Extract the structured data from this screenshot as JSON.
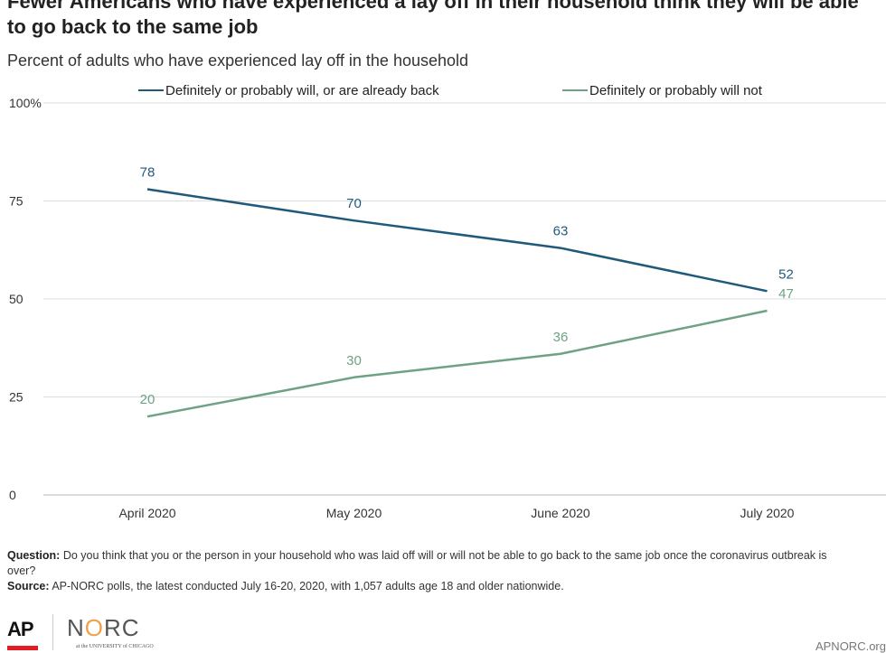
{
  "header": {
    "title": "Fewer Americans who have experienced a lay off in their household think they will be able to go back to the same job",
    "subtitle": "Percent of adults who have experienced lay off in the household"
  },
  "chart_data": {
    "type": "line",
    "categories": [
      "April 2020",
      "May 2020",
      "June 2020",
      "July 2020"
    ],
    "series": [
      {
        "name": "Definitely or probably will, or are already back",
        "color": "#1f5a7a",
        "values": [
          78,
          70,
          63,
          52
        ]
      },
      {
        "name": "Definitely or probably will not",
        "color": "#6fa184",
        "values": [
          20,
          30,
          36,
          47
        ]
      }
    ],
    "ylim": [
      0,
      100
    ],
    "yticks": [
      {
        "value": 0,
        "label": "0"
      },
      {
        "value": 25,
        "label": "25"
      },
      {
        "value": 50,
        "label": "50"
      },
      {
        "value": 75,
        "label": "75"
      },
      {
        "value": 100,
        "label": "100%"
      }
    ],
    "legend_position": "top",
    "grid": true
  },
  "footnote": {
    "question_label": "Question:",
    "question_text": "Do you think that you or the person in your household who was laid off will or will not be able to go back to the same job once the coronavirus outbreak is over?",
    "source_label": "Source:",
    "source_text": "AP-NORC polls, the latest conducted July 16-20, 2020, with 1,057 adults age 18 and older nationwide."
  },
  "logos": {
    "ap": "AP",
    "norc_n": "N",
    "norc_o": "O",
    "norc_rc": "RC",
    "norc_sub": "at the UNIVERSITY of CHICAGO"
  },
  "site": "APNORC.org"
}
